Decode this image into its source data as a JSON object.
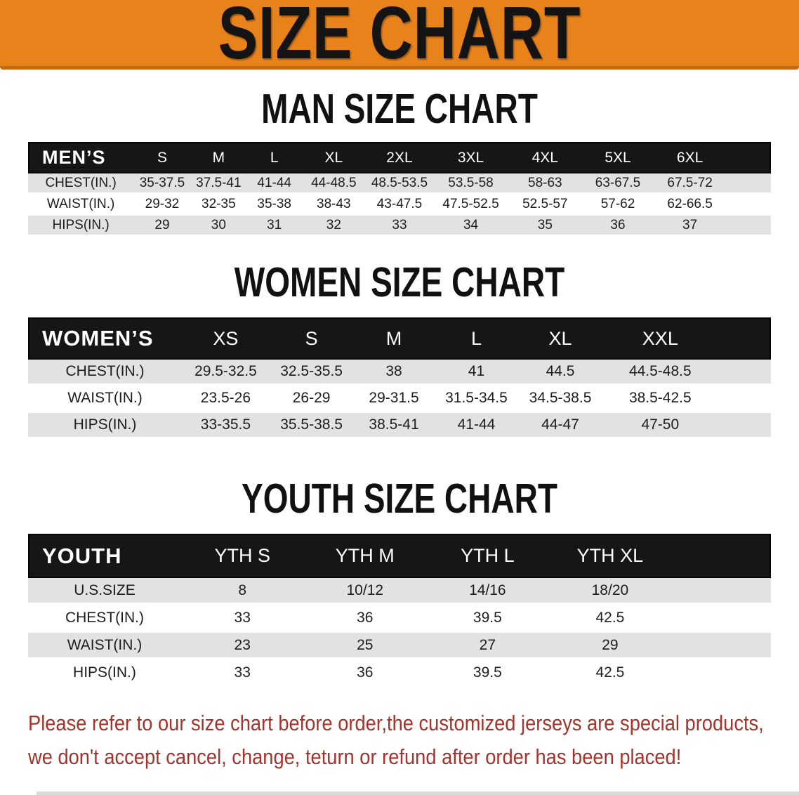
{
  "banner": {
    "title": "SIZE CHART",
    "bg_color": "#E8821B",
    "text_color": "#141414"
  },
  "sections": [
    {
      "title": "MAN SIZE CHART",
      "header_label": "MEN’S",
      "sizes": [
        "S",
        "M",
        "L",
        "XL",
        "2XL",
        "3XL",
        "4XL",
        "5XL",
        "6XL"
      ],
      "rows": [
        {
          "label": "CHEST(IN.)",
          "values": [
            "35-37.5",
            "37.5-41",
            "41-44",
            "44-48.5",
            "48.5-53.5",
            "53.5-58",
            "58-63",
            "63-67.5",
            "67.5-72"
          ]
        },
        {
          "label": "WAIST(IN.)",
          "values": [
            "29-32",
            "32-35",
            "35-38",
            "38-43",
            "43-47.5",
            "47.5-52.5",
            "52.5-57",
            "57-62",
            "62-66.5"
          ]
        },
        {
          "label": "HIPS(IN.)",
          "values": [
            "29",
            "30",
            "31",
            "32",
            "33",
            "34",
            "35",
            "36",
            "37"
          ]
        }
      ]
    },
    {
      "title": "WOMEN SIZE CHART",
      "header_label": "WOMEN’S",
      "sizes": [
        "XS",
        "S",
        "M",
        "L",
        "XL",
        "XXL"
      ],
      "rows": [
        {
          "label": "CHEST(IN.)",
          "values": [
            "29.5-32.5",
            "32.5-35.5",
            "38",
            "41",
            "44.5",
            "44.5-48.5"
          ]
        },
        {
          "label": "WAIST(IN.)",
          "values": [
            "23.5-26",
            "26-29",
            "29-31.5",
            "31.5-34.5",
            "34.5-38.5",
            "38.5-42.5"
          ]
        },
        {
          "label": "HIPS(IN.)",
          "values": [
            "33-35.5",
            "35.5-38.5",
            "38.5-41",
            "41-44",
            "44-47",
            "47-50"
          ]
        }
      ]
    },
    {
      "title": "YOUTH SIZE CHART",
      "header_label": "YOUTH",
      "sizes": [
        "YTH S",
        "YTH M",
        "YTH L",
        "YTH XL"
      ],
      "rows": [
        {
          "label": "U.S.SIZE",
          "values": [
            "8",
            "10/12",
            "14/16",
            "18/20"
          ]
        },
        {
          "label": "CHEST(IN.)",
          "values": [
            "33",
            "36",
            "39.5",
            "42.5"
          ]
        },
        {
          "label": "WAIST(IN.)",
          "values": [
            "23",
            "25",
            "27",
            "29"
          ]
        },
        {
          "label": "HIPS(IN.)",
          "values": [
            "33",
            "36",
            "39.5",
            "42.5"
          ]
        }
      ]
    }
  ],
  "disclaimer": {
    "line1": "Please refer to our size chart before order,the customized jerseys are special products,",
    "line2": "we don't accept cancel, change, teturn or refund after order has been placed!",
    "color": "#A4332B"
  },
  "colors": {
    "row_stripe": "#E2E2E2",
    "header_bar": "#161616",
    "banner_border": "#C9690F",
    "bottom_strip": "#D9D9D9"
  }
}
